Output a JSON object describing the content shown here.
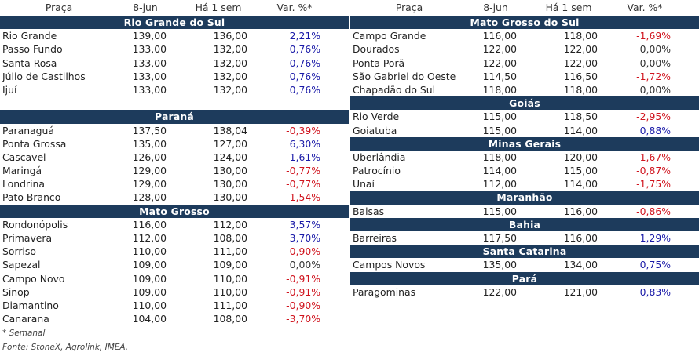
{
  "headers": {
    "praca": "Praça",
    "date": "8-jun",
    "prev": "Há 1 sem",
    "var": "Var. %*"
  },
  "left": [
    {
      "region": "Rio Grande do Sul",
      "rows": [
        {
          "name": "Rio Grande",
          "d1": "139,00",
          "d2": "136,00",
          "var": "2,21%",
          "sign": "pos"
        },
        {
          "name": "Passo Fundo",
          "d1": "133,00",
          "d2": "132,00",
          "var": "0,76%",
          "sign": "pos"
        },
        {
          "name": "Santa Rosa",
          "d1": "133,00",
          "d2": "132,00",
          "var": "0,76%",
          "sign": "pos"
        },
        {
          "name": "Júlio de Castilhos",
          "d1": "133,00",
          "d2": "132,00",
          "var": "0,76%",
          "sign": "pos"
        },
        {
          "name": "Ijuí",
          "d1": "133,00",
          "d2": "132,00",
          "var": "0,76%",
          "sign": "pos"
        }
      ],
      "gap_after": true
    },
    {
      "region": "Paraná",
      "rows": [
        {
          "name": "Paranaguá",
          "d1": "137,50",
          "d2": "138,04",
          "var": "-0,39%",
          "sign": "neg"
        },
        {
          "name": "Ponta Grossa",
          "d1": "135,00",
          "d2": "127,00",
          "var": "6,30%",
          "sign": "pos"
        },
        {
          "name": "Cascavel",
          "d1": "126,00",
          "d2": "124,00",
          "var": "1,61%",
          "sign": "pos"
        },
        {
          "name": "Maringá",
          "d1": "129,00",
          "d2": "130,00",
          "var": "-0,77%",
          "sign": "neg"
        },
        {
          "name": "Londrina",
          "d1": "129,00",
          "d2": "130,00",
          "var": "-0,77%",
          "sign": "neg"
        },
        {
          "name": "Pato Branco",
          "d1": "128,00",
          "d2": "130,00",
          "var": "-1,54%",
          "sign": "neg"
        }
      ]
    },
    {
      "region": "Mato Grosso",
      "rows": [
        {
          "name": "Rondonópolis",
          "d1": "116,00",
          "d2": "112,00",
          "var": "3,57%",
          "sign": "pos"
        },
        {
          "name": "Primavera",
          "d1": "112,00",
          "d2": "108,00",
          "var": "3,70%",
          "sign": "pos"
        },
        {
          "name": "Sorriso",
          "d1": "110,00",
          "d2": "111,00",
          "var": "-0,90%",
          "sign": "neg"
        },
        {
          "name": "Sapezal",
          "d1": "109,00",
          "d2": "109,00",
          "var": "0,00%",
          "sign": "zero"
        },
        {
          "name": "Campo Novo",
          "d1": "109,00",
          "d2": "110,00",
          "var": "-0,91%",
          "sign": "neg"
        },
        {
          "name": "Sinop",
          "d1": "109,00",
          "d2": "110,00",
          "var": "-0,91%",
          "sign": "neg"
        },
        {
          "name": "Diamantino",
          "d1": "110,00",
          "d2": "111,00",
          "var": "-0,90%",
          "sign": "neg"
        },
        {
          "name": "Canarana",
          "d1": "104,00",
          "d2": "108,00",
          "var": "-3,70%",
          "sign": "neg"
        }
      ]
    }
  ],
  "right": [
    {
      "region": "Mato Grosso do Sul",
      "rows": [
        {
          "name": "Campo Grande",
          "d1": "116,00",
          "d2": "118,00",
          "var": "-1,69%",
          "sign": "neg"
        },
        {
          "name": "Dourados",
          "d1": "122,00",
          "d2": "122,00",
          "var": "0,00%",
          "sign": "zero"
        },
        {
          "name": "Ponta Porã",
          "d1": "122,00",
          "d2": "122,00",
          "var": "0,00%",
          "sign": "zero"
        },
        {
          "name": "São Gabriel do Oeste",
          "d1": "114,50",
          "d2": "116,50",
          "var": "-1,72%",
          "sign": "neg"
        },
        {
          "name": "Chapadão do Sul",
          "d1": "118,00",
          "d2": "118,00",
          "var": "0,00%",
          "sign": "zero"
        }
      ]
    },
    {
      "region": "Goiás",
      "rows": [
        {
          "name": "Rio Verde",
          "d1": "115,00",
          "d2": "118,50",
          "var": "-2,95%",
          "sign": "neg"
        },
        {
          "name": "Goiatuba",
          "d1": "115,00",
          "d2": "114,00",
          "var": "0,88%",
          "sign": "pos"
        }
      ]
    },
    {
      "region": "Minas Gerais",
      "rows": [
        {
          "name": "Uberlândia",
          "d1": "118,00",
          "d2": "120,00",
          "var": "-1,67%",
          "sign": "neg"
        },
        {
          "name": "Patrocínio",
          "d1": "114,00",
          "d2": "115,00",
          "var": "-0,87%",
          "sign": "neg"
        },
        {
          "name": "Unaí",
          "d1": "112,00",
          "d2": "114,00",
          "var": "-1,75%",
          "sign": "neg"
        }
      ]
    },
    {
      "region": "Maranhão",
      "rows": [
        {
          "name": "Balsas",
          "d1": "115,00",
          "d2": "116,00",
          "var": "-0,86%",
          "sign": "neg"
        }
      ]
    },
    {
      "region": "Bahia",
      "rows": [
        {
          "name": "Barreiras",
          "d1": "117,50",
          "d2": "116,00",
          "var": "1,29%",
          "sign": "pos"
        }
      ]
    },
    {
      "region": "Santa Catarina",
      "rows": [
        {
          "name": "Campos Novos",
          "d1": "135,00",
          "d2": "134,00",
          "var": "0,75%",
          "sign": "pos"
        }
      ]
    },
    {
      "region": "Pará",
      "rows": [
        {
          "name": "Paragominas",
          "d1": "122,00",
          "d2": "121,00",
          "var": "0,83%",
          "sign": "pos"
        }
      ]
    }
  ],
  "footnote": "* Semanal",
  "source": "Fonte: StoneX, Agrolink, IMEA."
}
